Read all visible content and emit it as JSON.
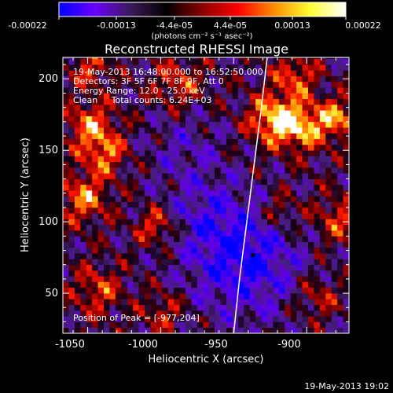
{
  "colorbar": {
    "ticks": [
      "-0.00022",
      "-0.00013",
      "-4.4e-05",
      "4.4e-05",
      "0.00013",
      "0.00022"
    ],
    "unit_label": "(photons cm⁻² s⁻¹ asec⁻²)",
    "colors": [
      "#0000ff",
      "#6a00ff",
      "#3c1a5a",
      "#000000",
      "#8b0000",
      "#ff0000",
      "#ff8c00",
      "#ffff33",
      "#ffffff"
    ]
  },
  "chart_data": {
    "type": "heatmap",
    "title": "Reconstructed RHESSI Image",
    "xlabel": "Heliocentric X (arcsec)",
    "ylabel": "Heliocentric Y (arcsec)",
    "xlim": [
      -1067,
      -871
    ],
    "ylim": [
      22,
      215
    ],
    "x_ticks": [
      "-1050",
      "-1000",
      "-950",
      "-900"
    ],
    "x_tick_values": [
      -1050,
      -1000,
      -950,
      -900
    ],
    "y_ticks": [
      "50",
      "100",
      "150",
      "200"
    ],
    "y_tick_values": [
      50,
      100,
      150,
      200
    ],
    "value_range": [
      -0.00022,
      0.00022
    ],
    "limb_curve": {
      "x": [
        -950,
        -946,
        -941,
        -936,
        -931,
        -927
      ],
      "y": [
        22,
        60,
        100,
        140,
        180,
        215
      ]
    },
    "peak": {
      "x": -977,
      "y": 204
    },
    "info_lines": [
      "19-May-2013 16:48:00.000 to 16:52:50.000",
      "Detectors: 3F 5F 6F 7F 8F 9F, Att 0",
      "Energy Range: 12.0 - 25.0 keV",
      "Clean     Total counts: 6.24E+03"
    ],
    "peak_label": "Position of Peak = [-977,204]",
    "cell_size_arcsec": 4,
    "grid": false
  },
  "footer": {
    "timestamp": "19-May-2013 19:02"
  }
}
